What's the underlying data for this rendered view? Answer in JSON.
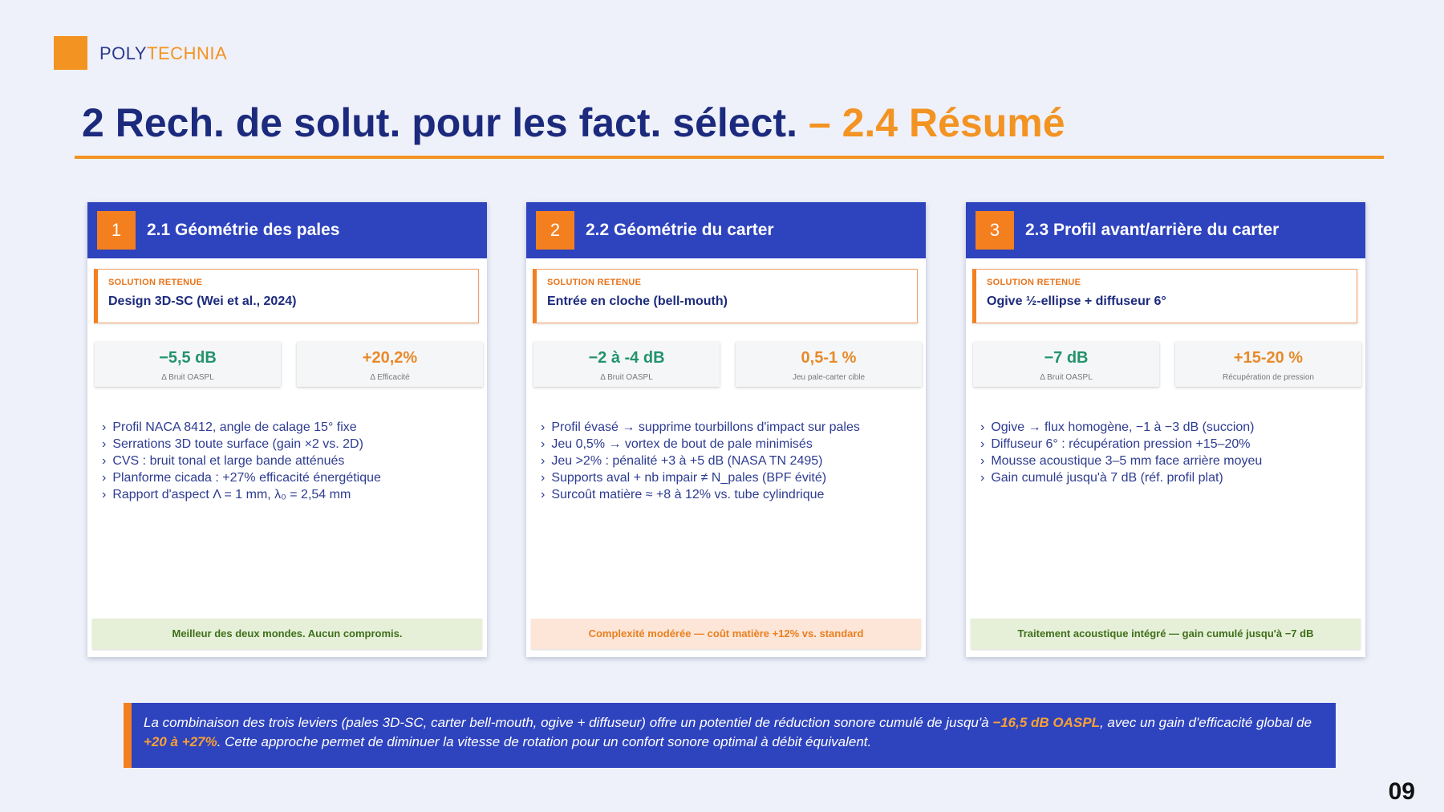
{
  "brand": {
    "part1": "POLY",
    "part2": "TECHNIA"
  },
  "title": {
    "num": "2",
    "main": "Rech. de solut. pour les fact. sélect.",
    "dash": "–",
    "sub_num": "2.4",
    "sub": "Résumé"
  },
  "cards": [
    {
      "number": "1",
      "title": "2.1 Géométrie des pales",
      "solution_label": "SOLUTION RETENUE",
      "solution": "Design 3D-SC (Wei et al., 2024)",
      "metrics": [
        {
          "value": "−5,5 dB",
          "label": "Δ Bruit OASPL"
        },
        {
          "value": "+20,2%",
          "label": "Δ Efficacité"
        }
      ],
      "bullets": [
        "Profil NACA 8412, angle de calage 15° fixe",
        "Serrations 3D toute surface (gain ×2 vs. 2D)",
        "CVS : bruit tonal et large bande atténués",
        "Planforme cicada : +27% efficacité énergétique",
        "Rapport d'aspect Λ = 1 mm, λ₀ = 2,54 mm"
      ],
      "footer": "Meilleur des deux mondes. Aucun compromis."
    },
    {
      "number": "2",
      "title": "2.2 Géométrie du carter",
      "solution_label": "SOLUTION RETENUE",
      "solution": "Entrée en cloche (bell-mouth)",
      "metrics": [
        {
          "value": "−2 à -4 dB",
          "label": "Δ Bruit OASPL"
        },
        {
          "value": "0,5-1 %",
          "label": "Jeu pale-carter cible"
        }
      ],
      "bullets": [
        "Profil évasé → supprime tourbillons d'impact sur pales",
        "Jeu 0,5% → vortex de bout de pale minimisés",
        "Jeu >2% : pénalité +3 à +5 dB (NASA TN 2495)",
        "Supports aval + nb impair ≠ N_pales (BPF évité)",
        "Surcoût matière ≈ +8 à 12% vs. tube cylindrique"
      ],
      "footer": "Complexité modérée — coût matière +12% vs. standard"
    },
    {
      "number": "3",
      "title": "2.3 Profil avant/arrière du carter",
      "solution_label": "SOLUTION RETENUE",
      "solution": "Ogive ½-ellipse + diffuseur 6°",
      "metrics": [
        {
          "value": "−7 dB",
          "label": "Δ Bruit OASPL"
        },
        {
          "value": "+15-20 %",
          "label": "Récupération de pression"
        }
      ],
      "bullets": [
        "Ogive → flux homogène, −1 à −3 dB (succion)",
        "Diffuseur 6° : récupération pression +15–20%",
        "Mousse acoustique 3–5 mm face arrière moyeu",
        "Gain cumulé jusqu'à 7 dB (réf. profil plat)"
      ],
      "footer": "Traitement acoustique intégré — gain cumulé jusqu'à −7 dB"
    }
  ],
  "summary": {
    "p1": "La combinaison des trois leviers (pales 3D-SC, carter bell-mouth, ogive + diffuseur) offre un potentiel de réduction sonore cumulé de jusqu'à ",
    "h1": "−16,5 dB OASPL",
    "p2": ", avec un gain d'efficacité global de ",
    "h2": "+20 à +27%",
    "p3": ". Cette approche permet de diminuer la vitesse de rotation pour un confort sonore optimal à débit équivalent."
  },
  "page_number": "09",
  "colors": {
    "navy": "#1c2a7d",
    "blue": "#2e43be",
    "orange": "#f47f1f",
    "green": "#23936b"
  }
}
